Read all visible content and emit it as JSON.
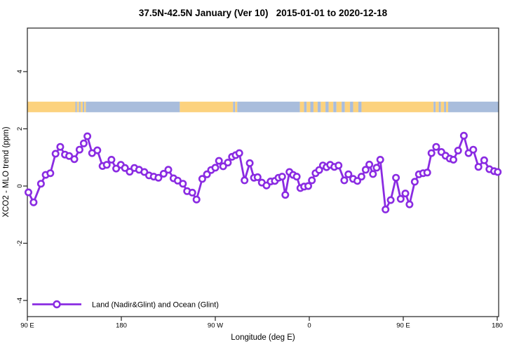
{
  "title": "37.5N-42.5N January (Ver 10)   2015-01-01 to 2020-12-18",
  "colors": {
    "series_purple": "#8A2BE2",
    "band_land_orange": "#FCD27E",
    "band_ocean_blue": "#A9BDDC",
    "axis": "#222222",
    "background": "#ffffff"
  },
  "legend": {
    "label": "Land (Nadir&Glint) and Ocean (Glint)"
  },
  "chart_data": {
    "type": "line",
    "title": "37.5N-42.5N January (Ver 10)   2015-01-01 to 2020-12-18",
    "xlabel": "Longitude (deg E)",
    "ylabel": "XCO2 - MLO trend (ppm)",
    "xlim": [
      90,
      540
    ],
    "ylim": [
      -4.56,
      5.52
    ],
    "grid": false,
    "legend_position": "bottom-left",
    "x_ticks": [
      {
        "x": 90,
        "label": "90 E"
      },
      {
        "x": 180,
        "label": "180"
      },
      {
        "x": 270,
        "label": "90 W"
      },
      {
        "x": 360,
        "label": "0"
      },
      {
        "x": 450,
        "label": "90 E"
      },
      {
        "x": 540,
        "label": "180"
      }
    ],
    "y_ticks": [
      {
        "y": -4,
        "label": "-4"
      },
      {
        "y": -2,
        "label": "-2"
      },
      {
        "y": 0,
        "label": "0"
      },
      {
        "y": 2,
        "label": "2"
      },
      {
        "y": 4,
        "label": "4"
      }
    ],
    "series": [
      {
        "name": "Land (Nadir&Glint) and Ocean (Glint)",
        "color": "#8A2BE2",
        "marker": "open-circle",
        "points": [
          [
            91,
            -0.22
          ],
          [
            96,
            -0.57
          ],
          [
            103,
            0.08
          ],
          [
            107.5,
            0.39
          ],
          [
            112,
            0.45
          ],
          [
            117,
            1.13
          ],
          [
            121.5,
            1.37
          ],
          [
            126,
            1.1
          ],
          [
            130,
            1.05
          ],
          [
            135,
            0.94
          ],
          [
            140,
            1.27
          ],
          [
            144,
            1.49
          ],
          [
            147.5,
            1.74
          ],
          [
            152,
            1.15
          ],
          [
            157,
            1.25
          ],
          [
            162,
            0.7
          ],
          [
            166,
            0.74
          ],
          [
            170.5,
            0.92
          ],
          [
            175,
            0.61
          ],
          [
            179.5,
            0.74
          ],
          [
            183.5,
            0.63
          ],
          [
            188,
            0.5
          ],
          [
            192.5,
            0.63
          ],
          [
            197,
            0.57
          ],
          [
            202,
            0.49
          ],
          [
            206.5,
            0.37
          ],
          [
            211,
            0.33
          ],
          [
            215.5,
            0.29
          ],
          [
            220.5,
            0.43
          ],
          [
            225,
            0.57
          ],
          [
            230,
            0.27
          ],
          [
            234,
            0.19
          ],
          [
            239,
            0.08
          ],
          [
            243,
            -0.18
          ],
          [
            248,
            -0.23
          ],
          [
            252,
            -0.47
          ],
          [
            257.5,
            0.25
          ],
          [
            262,
            0.41
          ],
          [
            266,
            0.56
          ],
          [
            270,
            0.64
          ],
          [
            273.5,
            0.88
          ],
          [
            277.5,
            0.69
          ],
          [
            282,
            0.82
          ],
          [
            286,
            1.02
          ],
          [
            289.5,
            1.08
          ],
          [
            293,
            1.15
          ],
          [
            298,
            0.2
          ],
          [
            303,
            0.8
          ],
          [
            307,
            0.29
          ],
          [
            310.5,
            0.31
          ],
          [
            314.5,
            0.12
          ],
          [
            319,
            0.02
          ],
          [
            323,
            0.16
          ],
          [
            327,
            0.18
          ],
          [
            330.5,
            0.29
          ],
          [
            334,
            0.33
          ],
          [
            337,
            -0.31
          ],
          [
            341,
            0.49
          ],
          [
            344.5,
            0.39
          ],
          [
            348,
            0.33
          ],
          [
            351.5,
            -0.07
          ],
          [
            355,
            -0.02
          ],
          [
            359,
            0.0
          ],
          [
            362.5,
            0.2
          ],
          [
            366,
            0.45
          ],
          [
            369.5,
            0.56
          ],
          [
            373,
            0.72
          ],
          [
            376.5,
            0.66
          ],
          [
            380,
            0.74
          ],
          [
            384,
            0.67
          ],
          [
            388,
            0.72
          ],
          [
            393.5,
            0.2
          ],
          [
            397.5,
            0.41
          ],
          [
            402,
            0.25
          ],
          [
            406,
            0.18
          ],
          [
            410,
            0.33
          ],
          [
            414,
            0.57
          ],
          [
            417.5,
            0.75
          ],
          [
            421,
            0.42
          ],
          [
            424.5,
            0.64
          ],
          [
            428,
            0.92
          ],
          [
            433,
            -0.82
          ],
          [
            438,
            -0.49
          ],
          [
            443,
            0.29
          ],
          [
            447.5,
            -0.45
          ],
          [
            452,
            -0.26
          ],
          [
            456,
            -0.64
          ],
          [
            461,
            0.15
          ],
          [
            465,
            0.41
          ],
          [
            469,
            0.45
          ],
          [
            473,
            0.47
          ],
          [
            477,
            1.15
          ],
          [
            481.5,
            1.37
          ],
          [
            486.5,
            1.19
          ],
          [
            490.5,
            1.06
          ],
          [
            494.5,
            0.96
          ],
          [
            498,
            0.92
          ],
          [
            502.5,
            1.24
          ],
          [
            508,
            1.76
          ],
          [
            512.5,
            1.15
          ],
          [
            517,
            1.27
          ],
          [
            522,
            0.67
          ],
          [
            527.5,
            0.9
          ],
          [
            532.5,
            0.59
          ],
          [
            537,
            0.52
          ],
          [
            540.5,
            0.49
          ]
        ]
      }
    ],
    "surface_band": {
      "description": "land/ocean indicator strip across longitude",
      "y_top_value": 2.95,
      "y_bottom_value": 2.58,
      "land_color": "#FCD27E",
      "ocean_color": "#A9BDDC",
      "segments": [
        {
          "from": 90,
          "to": 136,
          "type": "land"
        },
        {
          "from": 136,
          "to": 137.5,
          "type": "ocean"
        },
        {
          "from": 137.5,
          "to": 139.5,
          "type": "land"
        },
        {
          "from": 139.5,
          "to": 141,
          "type": "ocean"
        },
        {
          "from": 141,
          "to": 143,
          "type": "land"
        },
        {
          "from": 143,
          "to": 144.5,
          "type": "ocean"
        },
        {
          "from": 144.5,
          "to": 146,
          "type": "land"
        },
        {
          "from": 146,
          "to": 236,
          "type": "ocean"
        },
        {
          "from": 236,
          "to": 287,
          "type": "land"
        },
        {
          "from": 287,
          "to": 289,
          "type": "ocean"
        },
        {
          "from": 289,
          "to": 291,
          "type": "land"
        },
        {
          "from": 291,
          "to": 351,
          "type": "ocean"
        },
        {
          "from": 351,
          "to": 355,
          "type": "land"
        },
        {
          "from": 355,
          "to": 357.5,
          "type": "ocean"
        },
        {
          "from": 357.5,
          "to": 361,
          "type": "land"
        },
        {
          "from": 361,
          "to": 364,
          "type": "ocean"
        },
        {
          "from": 364,
          "to": 368,
          "type": "land"
        },
        {
          "from": 368,
          "to": 371,
          "type": "ocean"
        },
        {
          "from": 371,
          "to": 375.5,
          "type": "land"
        },
        {
          "from": 375.5,
          "to": 378.5,
          "type": "ocean"
        },
        {
          "from": 378.5,
          "to": 383,
          "type": "land"
        },
        {
          "from": 383,
          "to": 386,
          "type": "ocean"
        },
        {
          "from": 386,
          "to": 391,
          "type": "land"
        },
        {
          "from": 391,
          "to": 394,
          "type": "ocean"
        },
        {
          "from": 394,
          "to": 399,
          "type": "land"
        },
        {
          "from": 399,
          "to": 402,
          "type": "ocean"
        },
        {
          "from": 402,
          "to": 407,
          "type": "land"
        },
        {
          "from": 407,
          "to": 410,
          "type": "ocean"
        },
        {
          "from": 410,
          "to": 479,
          "type": "land"
        },
        {
          "from": 479,
          "to": 481,
          "type": "ocean"
        },
        {
          "from": 481,
          "to": 484,
          "type": "land"
        },
        {
          "from": 484,
          "to": 486,
          "type": "ocean"
        },
        {
          "from": 486,
          "to": 489,
          "type": "land"
        },
        {
          "from": 489,
          "to": 491,
          "type": "ocean"
        },
        {
          "from": 491,
          "to": 493,
          "type": "land"
        },
        {
          "from": 493,
          "to": 542,
          "type": "ocean"
        }
      ]
    }
  }
}
